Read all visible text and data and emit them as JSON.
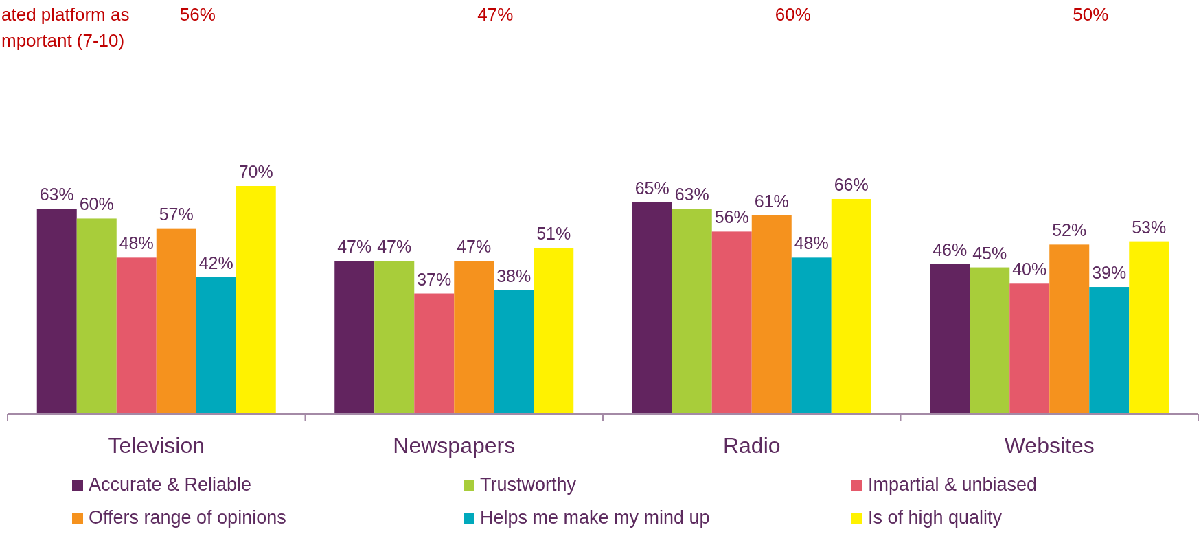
{
  "chart_data": {
    "type": "bar",
    "categories": [
      "Television",
      "Newspapers",
      "Radio",
      "Websites"
    ],
    "series": [
      {
        "name": "Accurate & Reliable",
        "color": "#62245f",
        "values": [
          63,
          47,
          65,
          46
        ],
        "value_labels": [
          "63%",
          "47%",
          "65%",
          "46%"
        ]
      },
      {
        "name": "Trustworthy",
        "color": "#a8cd3a",
        "values": [
          60,
          47,
          63,
          45
        ],
        "value_labels": [
          "60%",
          "47%",
          "63%",
          "45%"
        ]
      },
      {
        "name": "Impartial & unbiased",
        "color": "#e5596a",
        "values": [
          48,
          37,
          56,
          40
        ],
        "value_labels": [
          "48%",
          "37%",
          "56%",
          "40%"
        ]
      },
      {
        "name": "Offers range of opinions",
        "color": "#f5921e",
        "values": [
          57,
          47,
          61,
          52
        ],
        "value_labels": [
          "57%",
          "47%",
          "61%",
          "52%"
        ]
      },
      {
        "name": "Helps me make my mind up",
        "color": "#00a9bc",
        "values": [
          42,
          38,
          48,
          39
        ],
        "value_labels": [
          "42%",
          "38%",
          "48%",
          "39%"
        ]
      },
      {
        "name": "Is of high quality",
        "color": "#fff200",
        "values": [
          70,
          51,
          66,
          53
        ],
        "value_labels": [
          "70%",
          "51%",
          "66%",
          "53%"
        ]
      }
    ],
    "legend": "bottom",
    "tick_labels": "x",
    "annotations": [
      "ated platform as\nmportant (7-10)",
      "56%",
      "47%",
      "60%",
      "50%"
    ]
  }
}
